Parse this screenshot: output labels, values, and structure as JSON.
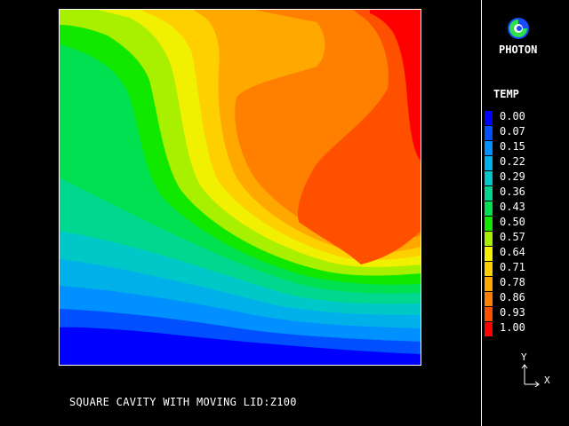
{
  "caption": "SQUARE CAVITY WITH MOVING LID:Z100",
  "logo": {
    "label": "PHOTON",
    "icon": "photon-logo-icon"
  },
  "legend": {
    "title": "TEMP",
    "entries": [
      {
        "value": "0.00",
        "color": "#0000ff"
      },
      {
        "value": "0.07",
        "color": "#0050ff"
      },
      {
        "value": "0.15",
        "color": "#0090ff"
      },
      {
        "value": "0.22",
        "color": "#00b0e8"
      },
      {
        "value": "0.29",
        "color": "#00c8c8"
      },
      {
        "value": "0.36",
        "color": "#00d890"
      },
      {
        "value": "0.43",
        "color": "#00e050"
      },
      {
        "value": "0.50",
        "color": "#10e800"
      },
      {
        "value": "0.57",
        "color": "#a8f000"
      },
      {
        "value": "0.64",
        "color": "#f0f000"
      },
      {
        "value": "0.71",
        "color": "#ffd000"
      },
      {
        "value": "0.78",
        "color": "#ffa800"
      },
      {
        "value": "0.86",
        "color": "#ff8000"
      },
      {
        "value": "0.93",
        "color": "#ff5000"
      },
      {
        "value": "1.00",
        "color": "#ff0000"
      }
    ]
  },
  "axes": {
    "y": "Y",
    "x": "X"
  }
}
